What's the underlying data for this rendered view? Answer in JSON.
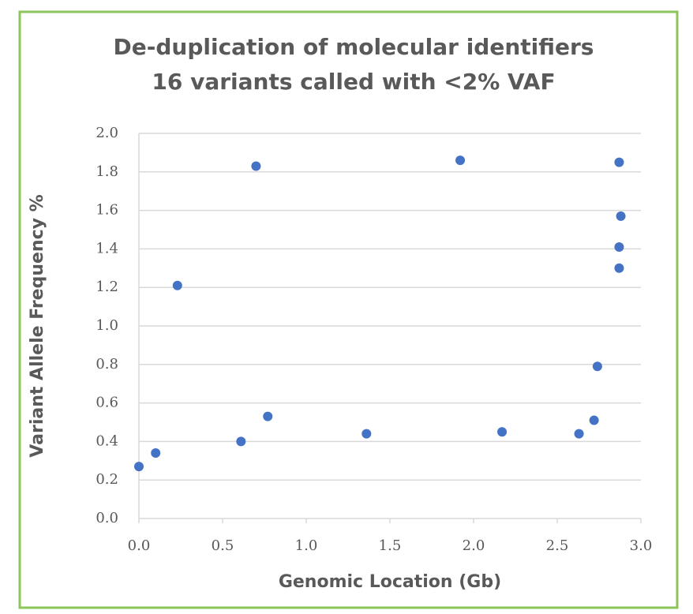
{
  "chart_data": {
    "type": "scatter",
    "title": "De-duplication of molecular identifiers",
    "subtitle": "16 variants called with <2% VAF",
    "xlabel": "Genomic Location (Gb)",
    "ylabel": "Variant Allele Frequency %",
    "series": [
      {
        "color": "#4472c4",
        "x": [
          0.0,
          0.1,
          0.23,
          0.61,
          0.7,
          0.77,
          1.36,
          1.92,
          2.17,
          2.63,
          2.72,
          2.74,
          2.87,
          2.88,
          2.87,
          2.87
        ],
        "values": [
          0.27,
          0.34,
          1.21,
          0.4,
          1.83,
          0.53,
          0.44,
          1.86,
          0.45,
          0.44,
          0.51,
          0.79,
          1.85,
          1.57,
          1.41,
          1.3
        ]
      }
    ],
    "xlim": [
      0,
      3
    ],
    "xticks": [
      {
        "value": 0,
        "label": "0.0"
      },
      0.5,
      {
        "value": 1,
        "label": "1.0"
      },
      1.5,
      {
        "value": 2,
        "label": "2.0"
      },
      2.5,
      {
        "value": 3,
        "label": "3.0"
      }
    ],
    "ylim": [
      0,
      2
    ],
    "yticks": [
      {
        "value": 0,
        "label": "0.0"
      },
      0.2,
      0.4,
      0.6,
      0.8,
      {
        "value": 1,
        "label": "1.0"
      },
      1.2,
      1.4,
      1.6,
      1.8,
      {
        "value": 2,
        "label": "2.0"
      }
    ],
    "grid": true
  }
}
